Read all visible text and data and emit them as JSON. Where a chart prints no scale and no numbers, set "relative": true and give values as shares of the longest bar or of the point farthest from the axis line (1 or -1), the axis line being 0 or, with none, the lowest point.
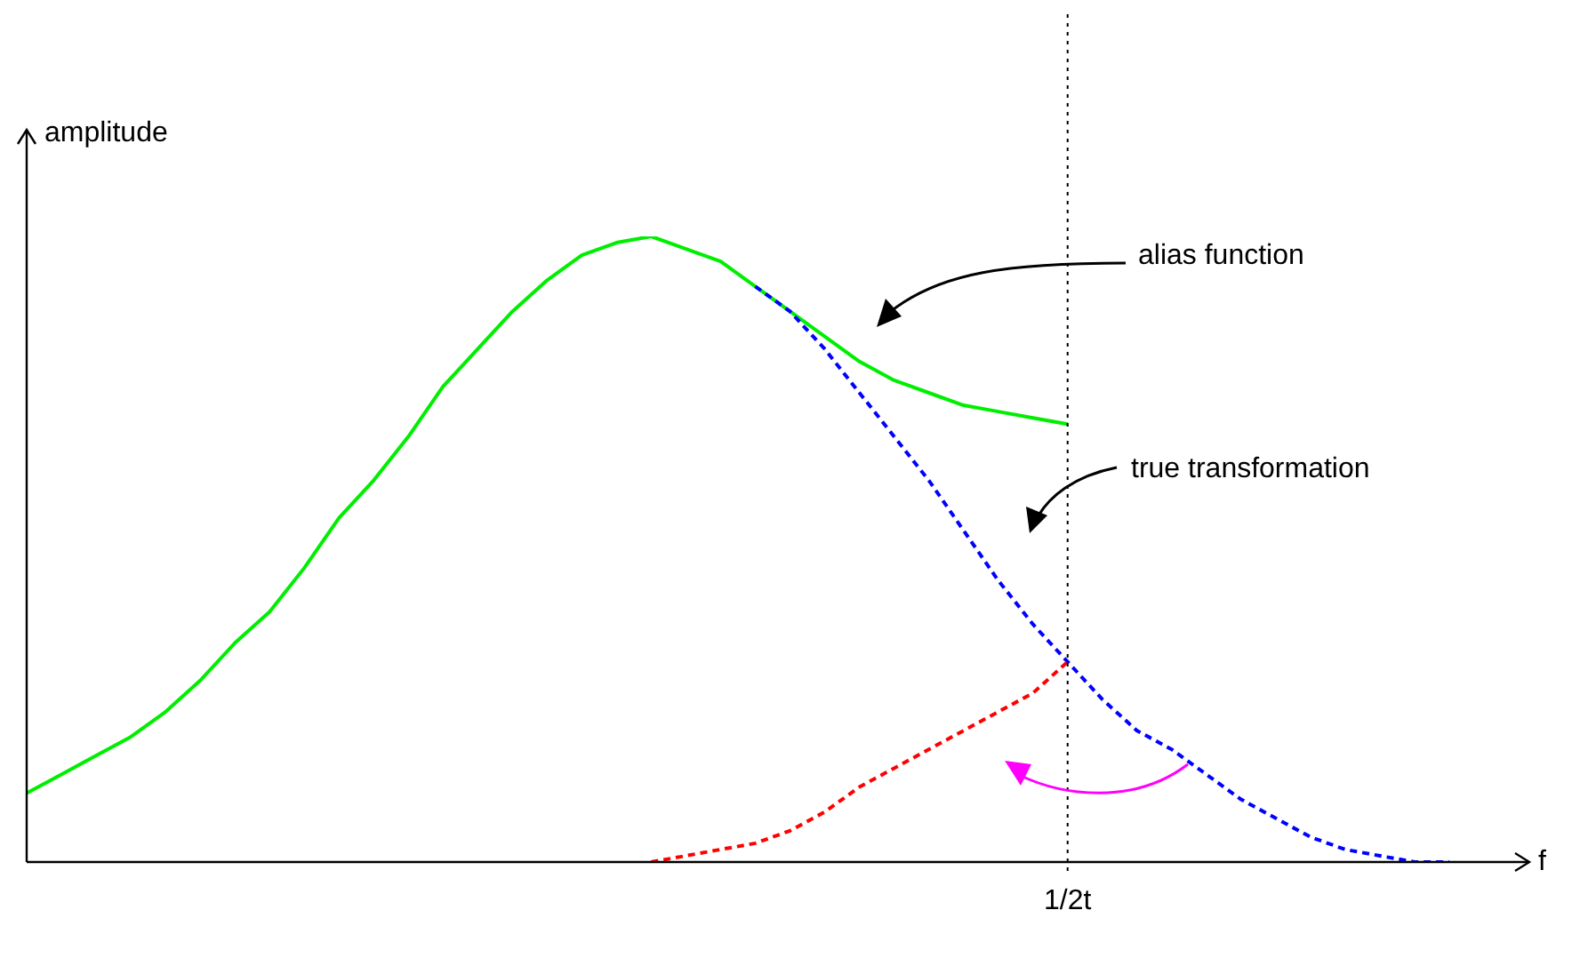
{
  "chart_data": {
    "type": "line",
    "relative": true,
    "xlabel": "f",
    "ylabel": "amplitude",
    "categories": [
      null,
      null,
      null,
      null,
      null,
      null,
      null,
      null,
      null,
      null,
      null,
      null,
      null,
      null,
      null,
      null,
      null,
      null,
      null,
      null,
      null,
      null,
      null,
      null,
      null,
      null,
      null,
      null,
      null,
      null,
      null,
      null,
      null,
      null,
      null,
      null,
      null,
      null,
      null,
      null,
      null,
      null
    ],
    "series": [
      {
        "color": "#00ee00",
        "line_style": "solid",
        "values": [
          0.11,
          0.14,
          0.17,
          0.2,
          0.24,
          0.29,
          0.35,
          0.4,
          0.47,
          0.55,
          0.61,
          0.68,
          0.76,
          0.82,
          0.88,
          0.93,
          0.97,
          0.99,
          1,
          0.98,
          0.96,
          0.92,
          0.88,
          0.84,
          0.8,
          0.77,
          0.75,
          0.73,
          0.72,
          0.71,
          0.7,
          null,
          null,
          null,
          null,
          null,
          null,
          null,
          null,
          null,
          null,
          null
        ]
      },
      {
        "color": "#0000ff",
        "line_style": "dashed",
        "values": [
          null,
          null,
          null,
          null,
          null,
          null,
          null,
          null,
          null,
          null,
          null,
          null,
          null,
          null,
          null,
          null,
          null,
          null,
          null,
          null,
          null,
          0.92,
          0.88,
          0.82,
          0.75,
          0.68,
          0.61,
          0.53,
          0.45,
          0.38,
          0.32,
          0.26,
          0.21,
          0.18,
          0.14,
          0.1,
          0.07,
          0.04,
          0.02,
          0.01,
          0,
          0
        ]
      },
      {
        "color": "#ff0000",
        "line_style": "dashed",
        "values": [
          null,
          null,
          null,
          null,
          null,
          null,
          null,
          null,
          null,
          null,
          null,
          null,
          null,
          null,
          null,
          null,
          null,
          null,
          0,
          0.01,
          0.02,
          0.03,
          0.05,
          0.08,
          0.12,
          0.15,
          0.18,
          0.21,
          0.24,
          0.27,
          0.32,
          null,
          null,
          null,
          null,
          null,
          null,
          null,
          null,
          null,
          null,
          null
        ]
      }
    ],
    "ref_lines": [
      {
        "axis": "x",
        "label": "1/2t",
        "color": "#000000",
        "line_style": "dotted"
      }
    ],
    "annotations": [
      "alias function",
      "true transformation"
    ],
    "legend": false,
    "grid": false,
    "marker": "none"
  }
}
